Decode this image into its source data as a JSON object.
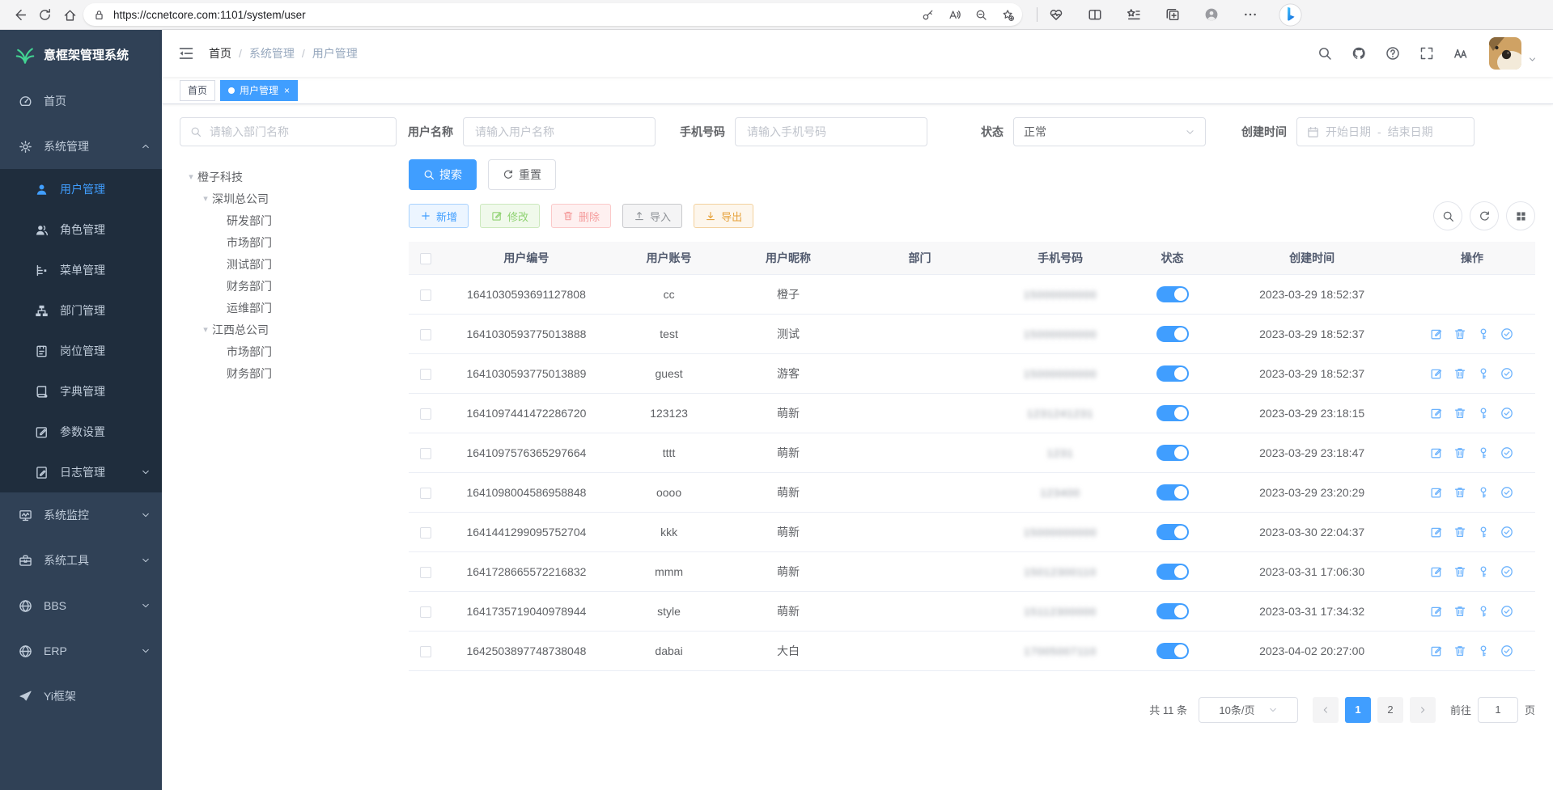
{
  "browser": {
    "url": "https://ccnetcore.com:1101/system/user",
    "left_icons": [
      "back-icon",
      "refresh-icon",
      "home-icon"
    ],
    "lock_icon": "lock-icon",
    "pill_icons": [
      "password-key-icon",
      "read-aloud-icon",
      "zoom-out-icon",
      "favorite-add-icon"
    ],
    "right_icons": [
      "browser-essentials-icon",
      "split-screen-icon",
      "favorites-bar-icon",
      "collections-icon",
      "profile-icon",
      "more-icon"
    ],
    "copilot_icon": "copilot-icon"
  },
  "sidebar": {
    "logo": {
      "icon": "plant-logo-icon",
      "text": "意框架管理系统"
    },
    "menu": [
      {
        "label": "首页",
        "icon": "dashboard-icon"
      },
      {
        "label": "系统管理",
        "icon": "gear-icon",
        "arrow": "up",
        "expanded": true,
        "children": [
          {
            "label": "用户管理",
            "icon": "user-icon",
            "active": true
          },
          {
            "label": "角色管理",
            "icon": "role-icon"
          },
          {
            "label": "菜单管理",
            "icon": "menu-tree-icon"
          },
          {
            "label": "部门管理",
            "icon": "org-tree-icon"
          },
          {
            "label": "岗位管理",
            "icon": "post-badge-icon"
          },
          {
            "label": "字典管理",
            "icon": "dict-book-icon"
          },
          {
            "label": "参数设置",
            "icon": "param-edit-icon"
          },
          {
            "label": "日志管理",
            "icon": "log-icon",
            "arrow": "down"
          }
        ]
      },
      {
        "label": "系统监控",
        "icon": "monitor-icon",
        "arrow": "down"
      },
      {
        "label": "系统工具",
        "icon": "tools-icon",
        "arrow": "down"
      },
      {
        "label": "BBS",
        "icon": "globe-icon",
        "arrow": "down"
      },
      {
        "label": "ERP",
        "icon": "globe-icon",
        "arrow": "down"
      },
      {
        "label": "Yi框架",
        "icon": "paper-plane-icon"
      }
    ]
  },
  "navbar": {
    "toggle_icon": "menu-fold-icon",
    "breadcrumb": [
      "首页",
      "系统管理",
      "用户管理"
    ],
    "separator": "/",
    "icons": [
      "search-icon",
      "github-icon",
      "help-icon",
      "fullscreen-icon",
      "font-size-icon"
    ],
    "avatar": "dog-photo",
    "caret_icon": "chev-down-icon"
  },
  "tabs": [
    {
      "label": "首页",
      "active": false,
      "closable": false
    },
    {
      "label": "用户管理",
      "active": true,
      "closable": true
    }
  ],
  "filters": {
    "dept_placeholder": "请输入部门名称",
    "fields": [
      {
        "type": "input",
        "label": "用户名称",
        "placeholder": "请输入用户名称"
      },
      {
        "type": "input",
        "label": "手机号码",
        "placeholder": "请输入手机号码"
      },
      {
        "type": "select",
        "label": "状态",
        "value": "正常"
      },
      {
        "type": "daterange",
        "label": "创建时间",
        "start": "开始日期",
        "separator": "-",
        "end": "结束日期"
      }
    ]
  },
  "tree": [
    {
      "label": "橙子科技",
      "level": 0,
      "caret": true
    },
    {
      "label": "深圳总公司",
      "level": 1,
      "caret": true
    },
    {
      "label": "研发部门",
      "level": 2,
      "caret": false
    },
    {
      "label": "市场部门",
      "level": 2,
      "caret": false
    },
    {
      "label": "测试部门",
      "level": 2,
      "caret": false
    },
    {
      "label": "财务部门",
      "level": 2,
      "caret": false
    },
    {
      "label": "运维部门",
      "level": 2,
      "caret": false
    },
    {
      "label": "江西总公司",
      "level": 1,
      "caret": true
    },
    {
      "label": "市场部门",
      "level": 2,
      "caret": false
    },
    {
      "label": "财务部门",
      "level": 2,
      "caret": false
    }
  ],
  "search_buttons": [
    {
      "label": "搜索",
      "icon": "search-icon",
      "variant": "primary"
    },
    {
      "label": "重置",
      "icon": "reset-icon",
      "variant": "plain"
    }
  ],
  "toolbar": {
    "buttons": [
      {
        "label": "新增",
        "icon": "plus-icon",
        "variant": "add"
      },
      {
        "label": "修改",
        "icon": "edit-icon",
        "variant": "edit"
      },
      {
        "label": "删除",
        "icon": "trash-icon",
        "variant": "delete"
      },
      {
        "label": "导入",
        "icon": "upload-icon",
        "variant": "import"
      },
      {
        "label": "导出",
        "icon": "download-icon",
        "variant": "export"
      }
    ],
    "tools": [
      "search-icon",
      "reset-icon",
      "grid-icon"
    ]
  },
  "table": {
    "columns": [
      "用户编号",
      "用户账号",
      "用户昵称",
      "部门",
      "手机号码",
      "状态",
      "创建时间",
      "操作"
    ],
    "action_icons": [
      "row-edit-icon",
      "row-delete-icon",
      "row-key-icon",
      "row-check-icon"
    ],
    "rows": [
      {
        "id": "1641030593691127808",
        "account": "cc",
        "nickname": "橙子",
        "dept": "",
        "phone_blurred": "15000000000",
        "status_on": true,
        "created": "2023-03-29 18:52:37",
        "actions": false
      },
      {
        "id": "1641030593775013888",
        "account": "test",
        "nickname": "测试",
        "dept": "",
        "phone_blurred": "15000000000",
        "status_on": true,
        "created": "2023-03-29 18:52:37",
        "actions": true
      },
      {
        "id": "1641030593775013889",
        "account": "guest",
        "nickname": "游客",
        "dept": "",
        "phone_blurred": "15000000000",
        "status_on": true,
        "created": "2023-03-29 18:52:37",
        "actions": true
      },
      {
        "id": "1641097441472286720",
        "account": "123123",
        "nickname": "萌新",
        "dept": "",
        "phone_blurred": "1231241231",
        "status_on": true,
        "created": "2023-03-29 23:18:15",
        "actions": true
      },
      {
        "id": "1641097576365297664",
        "account": "tttt",
        "nickname": "萌新",
        "dept": "",
        "phone_blurred": "1231",
        "status_on": true,
        "created": "2023-03-29 23:18:47",
        "actions": true
      },
      {
        "id": "1641098004586958848",
        "account": "oooo",
        "nickname": "萌新",
        "dept": "",
        "phone_blurred": "123400",
        "status_on": true,
        "created": "2023-03-29 23:20:29",
        "actions": true
      },
      {
        "id": "1641441299095752704",
        "account": "kkk",
        "nickname": "萌新",
        "dept": "",
        "phone_blurred": "15000000000",
        "status_on": true,
        "created": "2023-03-30 22:04:37",
        "actions": true
      },
      {
        "id": "1641728665572216832",
        "account": "mmm",
        "nickname": "萌新",
        "dept": "",
        "phone_blurred": "15012300110",
        "status_on": true,
        "created": "2023-03-31 17:06:30",
        "actions": true
      },
      {
        "id": "1641735719040978944",
        "account": "style",
        "nickname": "萌新",
        "dept": "",
        "phone_blurred": "15112300000",
        "status_on": true,
        "created": "2023-03-31 17:34:32",
        "actions": true
      },
      {
        "id": "1642503897748738048",
        "account": "dabai",
        "nickname": "大白",
        "dept": "",
        "phone_blurred": "17005007110",
        "status_on": true,
        "created": "2023-04-02 20:27:00",
        "actions": true
      }
    ]
  },
  "pagination": {
    "total": "共 11 条",
    "page_size": "10条/页",
    "pages": [
      "1",
      "2"
    ],
    "current": "1",
    "goto_label": "前往",
    "goto_value": "1",
    "unit": "页"
  },
  "colors": {
    "primary": "#409eff",
    "sidebar_bg": "#304156",
    "submenu_bg": "#1f2d3d",
    "active_tab": "#409eff",
    "toggle_on": "#409eff"
  }
}
